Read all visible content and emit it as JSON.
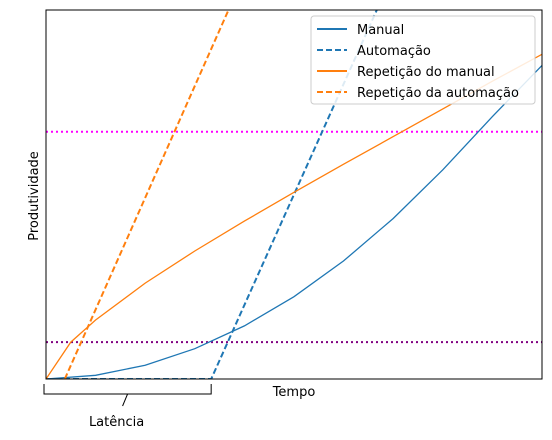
{
  "chart_data": {
    "type": "line",
    "title": "",
    "xlabel": "Tempo",
    "ylabel": "Produtividade",
    "xlim": [
      0,
      10
    ],
    "ylim": [
      0,
      10
    ],
    "grid": false,
    "legend_position": "top-right",
    "xticks": [],
    "yticks": [],
    "series": [
      {
        "name": "Manual",
        "color": "#1f77b4",
        "style": "solid",
        "x": [
          0,
          1,
          2,
          3,
          4,
          5,
          6,
          7,
          8,
          9,
          10
        ],
        "y": [
          0.0,
          0.1,
          0.37,
          0.82,
          1.44,
          2.23,
          3.2,
          4.35,
          5.67,
          7.11,
          8.5
        ]
      },
      {
        "name": "Automação",
        "color": "#1f77b4",
        "style": "dashed",
        "x": [
          0,
          3.33,
          6.67
        ],
        "y": [
          0.0,
          0.0,
          10.0
        ]
      },
      {
        "name": "Repetição do manual",
        "color": "#ff7f0e",
        "style": "solid",
        "x": [
          0,
          0.5,
          1,
          2,
          3,
          4,
          5,
          6,
          7,
          8,
          9,
          10
        ],
        "y": [
          0.0,
          1.0,
          1.6,
          2.6,
          3.47,
          4.28,
          5.06,
          5.82,
          6.57,
          7.32,
          8.07,
          8.8
        ]
      },
      {
        "name": "Repetição da automação",
        "color": "#ff7f0e",
        "style": "dashed",
        "x": [
          0.38,
          3.68
        ],
        "y": [
          0.0,
          10.0
        ]
      }
    ],
    "hlines": [
      {
        "y": 6.7,
        "color": "#ff00ff",
        "style": "dotted"
      },
      {
        "y": 1.0,
        "color": "#800080",
        "style": "dotted"
      }
    ],
    "annotations": [
      {
        "text": "Latência",
        "x_start": 0,
        "x_end": 3.33
      }
    ]
  }
}
